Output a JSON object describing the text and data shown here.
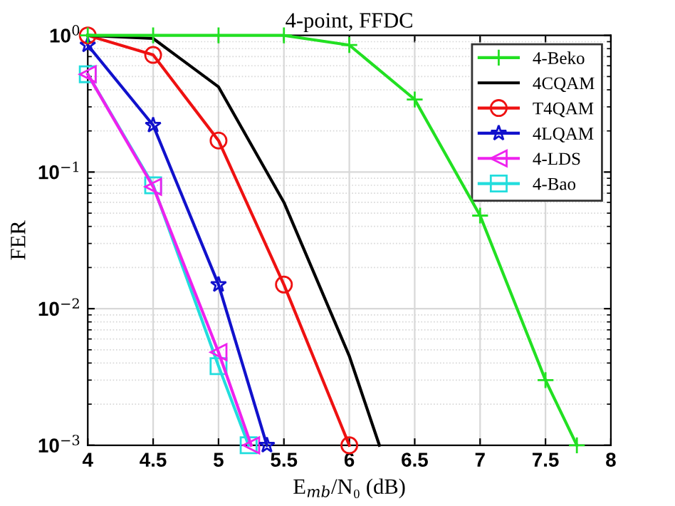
{
  "chart_data": {
    "type": "line",
    "title": "4-point, FFDC",
    "xlabel": "E$_{mb}$/N₀ (dB)",
    "ylabel": "FER",
    "xlim": [
      4,
      8
    ],
    "xticks": [
      4,
      4.5,
      5,
      5.5,
      6,
      6.5,
      7,
      7.5,
      8
    ],
    "log": "y",
    "ylim": [
      0.001,
      1
    ],
    "yticks": [
      {
        "value": 0.001,
        "label": "10$^{−3}$"
      },
      {
        "value": 0.01,
        "label": "10$^{−2}$"
      },
      {
        "value": 0.1,
        "label": "10$^{−1}$"
      },
      {
        "value": 1,
        "label": "10$^{0}$"
      }
    ],
    "grid": true,
    "legend": "top right",
    "line_style": "solid",
    "series": [
      {
        "name": "4-Beko",
        "color": "#22e022",
        "marker": "cross",
        "x": [
          4,
          4.5,
          5,
          5.5,
          6,
          6.5,
          7,
          7.5,
          7.74
        ],
        "values": [
          1,
          1,
          1,
          1,
          0.85,
          0.34,
          0.048,
          0.003,
          0.001
        ]
      },
      {
        "name": "4CQAM",
        "color": "#000000",
        "marker": "none",
        "x": [
          4,
          4.5,
          5,
          5.5,
          6,
          6.23
        ],
        "values": [
          1,
          0.95,
          0.42,
          0.06,
          0.0045,
          0.001
        ]
      },
      {
        "name": "T4QAM",
        "color": "#ee1111",
        "marker": "circle",
        "x": [
          4,
          4.5,
          5,
          5.5,
          6
        ],
        "values": [
          1,
          0.72,
          0.17,
          0.015,
          0.001
        ]
      },
      {
        "name": "4LQAM",
        "color": "#1111cc",
        "marker": "star",
        "x": [
          4,
          4.5,
          5,
          5.37
        ],
        "values": [
          0.85,
          0.22,
          0.015,
          0.001
        ]
      },
      {
        "name": "4-LDS",
        "color": "#ee22ee",
        "marker": "triangle",
        "x": [
          4,
          4.5,
          5,
          5.25
        ],
        "values": [
          0.52,
          0.078,
          0.0048,
          0.001
        ]
      },
      {
        "name": "4-Bao",
        "color": "#22dddd",
        "marker": "square",
        "x": [
          4,
          4.5,
          5,
          5.23
        ],
        "values": [
          0.52,
          0.08,
          0.0038,
          0.001
        ]
      }
    ]
  }
}
